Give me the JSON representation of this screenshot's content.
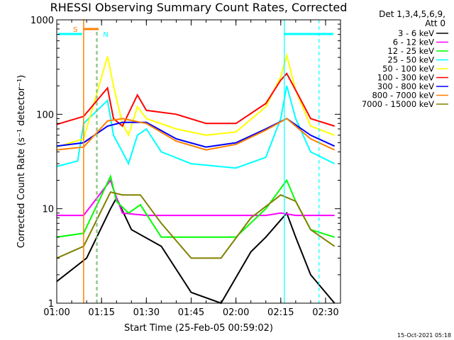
{
  "chart_data": {
    "type": "line",
    "title": "RHESSI Observing Summary Count Rates, Corrected",
    "xlabel": "Start Time (25-Feb-05 00:59:02)",
    "ylabel": "Corrected Count Rate (s⁻¹ detector⁻¹)",
    "y_scale": "log",
    "ylim": [
      1,
      1000
    ],
    "xlim": [
      "01:00",
      "02:35"
    ],
    "x_ticks": [
      "01:00",
      "01:15",
      "01:30",
      "01:45",
      "02:00",
      "02:15",
      "02:30"
    ],
    "y_ticks": [
      "1",
      "10",
      "100",
      "1000"
    ],
    "legend_header": [
      "Det 1,3,4,5,6,9,",
      "Att 0"
    ],
    "legend_position": "right",
    "footer_timestamp": "15-Oct-2021 05:18",
    "markers": [
      {
        "label": "S",
        "color": "#ff8000"
      },
      {
        "label": "N",
        "color": "#00ffff"
      }
    ],
    "series": [
      {
        "name": "3 - 6 keV",
        "color": "#000000",
        "x": [
          "01:00",
          "01:10",
          "01:18",
          "01:20",
          "01:25",
          "01:35",
          "01:45",
          "01:55",
          "02:05",
          "02:10",
          "02:17",
          "02:20",
          "02:25",
          "02:33"
        ],
        "y": [
          1.7,
          3,
          10,
          13,
          6,
          4,
          1.3,
          1,
          3.5,
          5,
          9,
          5,
          2,
          1
        ]
      },
      {
        "name": "6 - 12 keV",
        "color": "#ff00ff",
        "x": [
          "01:00",
          "01:09",
          "01:18",
          "01:19",
          "01:22",
          "01:30",
          "01:45",
          "02:00",
          "02:10",
          "02:15",
          "02:20",
          "02:25",
          "02:33"
        ],
        "y": [
          8.5,
          8.5,
          20,
          16,
          9,
          8.5,
          8.5,
          8.5,
          8.5,
          9,
          8.5,
          8.5,
          8.5
        ]
      },
      {
        "name": "12 - 25 keV",
        "color": "#00ff00",
        "x": [
          "01:00",
          "01:09",
          "01:18",
          "01:20",
          "01:24",
          "01:28",
          "01:35",
          "01:45",
          "02:00",
          "02:10",
          "02:17",
          "02:20",
          "02:25",
          "02:33"
        ],
        "y": [
          5,
          5.5,
          22,
          12,
          9,
          11,
          5,
          5,
          5,
          10,
          20,
          12,
          6,
          5
        ]
      },
      {
        "name": "25 - 50 keV",
        "color": "#00ffff",
        "x": [
          "01:00",
          "01:07",
          "01:09",
          "01:17",
          "01:19",
          "01:22",
          "01:24",
          "01:27",
          "01:30",
          "01:35",
          "01:45",
          "02:00",
          "02:10",
          "02:15",
          "02:17",
          "02:20",
          "02:25",
          "02:33"
        ],
        "y": [
          28,
          32,
          80,
          140,
          60,
          40,
          30,
          60,
          70,
          40,
          30,
          27,
          35,
          90,
          200,
          90,
          40,
          30
        ]
      },
      {
        "name": "50 - 100 keV",
        "color": "#ffff00",
        "x": [
          "01:00",
          "01:09",
          "01:17",
          "01:19",
          "01:22",
          "01:24",
          "01:27",
          "01:30",
          "01:40",
          "01:50",
          "02:00",
          "02:10",
          "02:15",
          "02:17",
          "02:20",
          "02:25",
          "02:33"
        ],
        "y": [
          45,
          55,
          410,
          200,
          80,
          60,
          120,
          90,
          70,
          60,
          65,
          120,
          250,
          420,
          180,
          75,
          60
        ]
      },
      {
        "name": "100 - 300 keV",
        "color": "#ff0000",
        "x": [
          "01:00",
          "01:09",
          "01:17",
          "01:19",
          "01:22",
          "01:27",
          "01:30",
          "01:40",
          "01:50",
          "02:00",
          "02:10",
          "02:15",
          "02:17",
          "02:20",
          "02:25",
          "02:33"
        ],
        "y": [
          78,
          95,
          190,
          90,
          75,
          160,
          110,
          100,
          80,
          80,
          130,
          230,
          270,
          180,
          90,
          75
        ]
      },
      {
        "name": "300 - 800 keV",
        "color": "#0000ff",
        "x": [
          "01:00",
          "01:09",
          "01:17",
          "01:22",
          "01:30",
          "01:40",
          "01:50",
          "02:00",
          "02:10",
          "02:17",
          "02:25",
          "02:33"
        ],
        "y": [
          46,
          50,
          75,
          82,
          82,
          55,
          45,
          50,
          70,
          90,
          60,
          46
        ]
      },
      {
        "name": "800 - 7000 keV",
        "color": "#ff8000",
        "x": [
          "01:00",
          "01:09",
          "01:17",
          "01:22",
          "01:30",
          "01:40",
          "01:50",
          "02:00",
          "02:10",
          "02:17",
          "02:25",
          "02:33"
        ],
        "y": [
          42,
          45,
          85,
          90,
          80,
          52,
          42,
          48,
          68,
          90,
          55,
          42
        ]
      },
      {
        "name": "7000 - 15000 keV",
        "color": "#808000",
        "x": [
          "01:00",
          "01:09",
          "01:18",
          "01:22",
          "01:28",
          "01:35",
          "01:45",
          "01:55",
          "02:05",
          "02:15",
          "02:20",
          "02:25",
          "02:33"
        ],
        "y": [
          3,
          4,
          15,
          14,
          14,
          7,
          3,
          3,
          8,
          14,
          12,
          6,
          4
        ]
      }
    ]
  }
}
